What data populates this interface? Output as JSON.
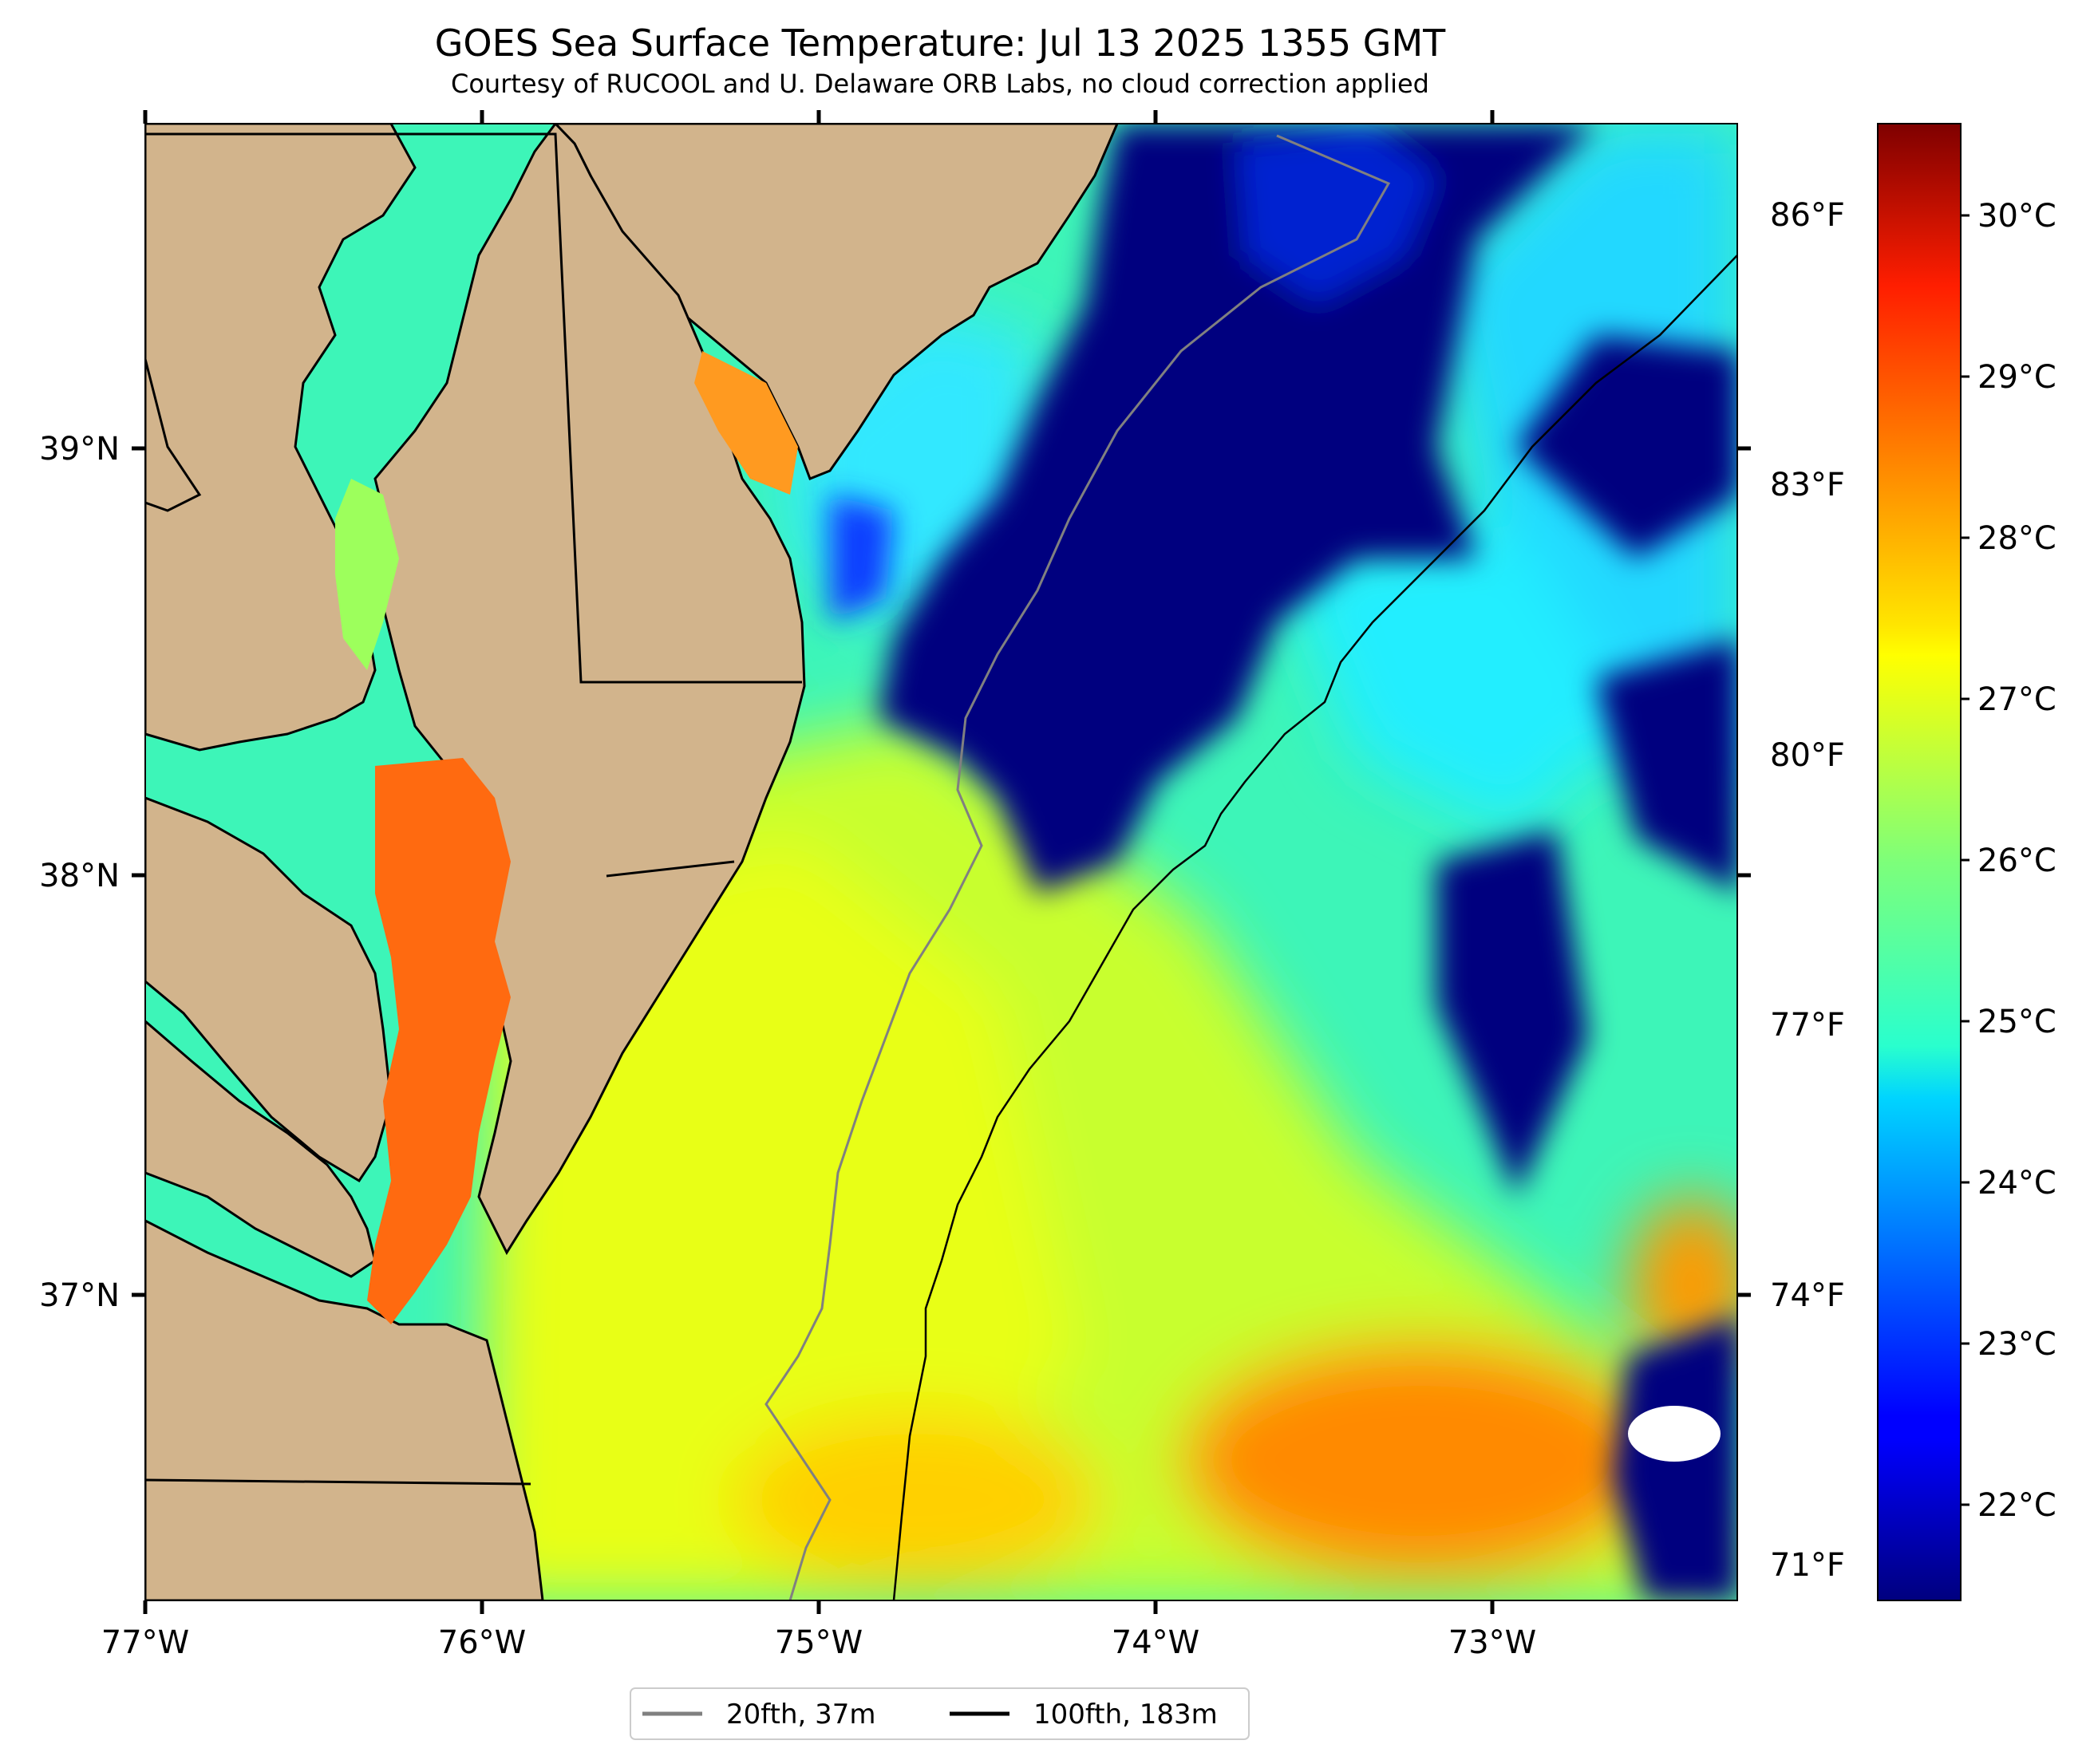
{
  "title": "GOES Sea Surface Temperature: Jul 13 2025 1355 GMT",
  "subtitle": "Courtesy of RUCOOL and U. Delaware ORB Labs, no cloud correction applied",
  "map": {
    "lon_range": [
      -77.0,
      -72.28
    ],
    "lat_range": [
      36.3,
      39.75
    ],
    "lon_tick_labels": [
      "77°W",
      "76°W",
      "75°W",
      "74°W",
      "73°W"
    ],
    "lat_tick_labels": [
      "39°N",
      "38°N",
      "37°N"
    ],
    "land_color": "#d2b48c",
    "cloud_color": "#ffffff"
  },
  "colorbar": {
    "colormap": "jet",
    "celsius_range": [
      21.5,
      30.5
    ],
    "celsius_labels": [
      "30°C",
      "29°C",
      "28°C",
      "27°C",
      "26°C",
      "25°C",
      "24°C",
      "23°C",
      "22°C"
    ],
    "fahrenheit_labels": [
      "86°F",
      "83°F",
      "80°F",
      "77°F",
      "74°F",
      "71°F"
    ]
  },
  "legend": {
    "items": [
      {
        "label": "20fth, 37m",
        "color": "#808080"
      },
      {
        "label": "100fth, 183m",
        "color": "#000000"
      }
    ]
  }
}
